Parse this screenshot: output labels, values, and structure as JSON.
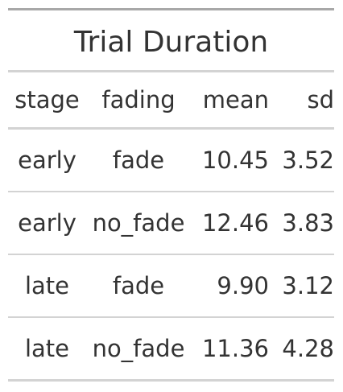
{
  "table": {
    "title": "Trial Duration",
    "columns": [
      "stage",
      "fading",
      "mean",
      "sd"
    ],
    "rows": [
      {
        "stage": "early",
        "fading": "fade",
        "mean": "10.45",
        "sd": "3.52"
      },
      {
        "stage": "early",
        "fading": "no_fade",
        "mean": "12.46",
        "sd": "3.83"
      },
      {
        "stage": "late",
        "fading": "fade",
        "mean": "9.90",
        "sd": "3.12"
      },
      {
        "stage": "late",
        "fading": "no_fade",
        "mean": "11.36",
        "sd": "4.28"
      }
    ]
  }
}
